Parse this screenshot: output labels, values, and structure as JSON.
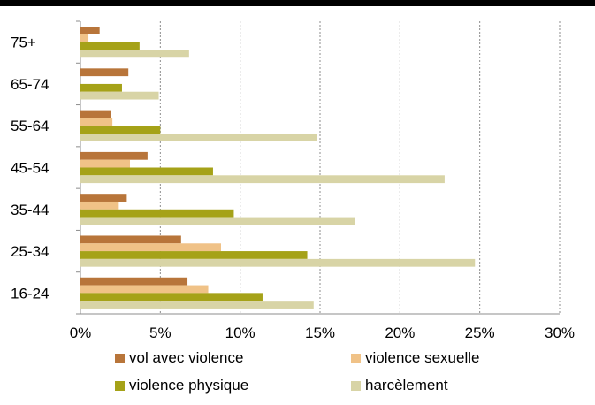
{
  "chart_data": {
    "type": "bar",
    "orientation": "horizontal",
    "categories": [
      "16-24",
      "25-34",
      "35-44",
      "45-54",
      "55-64",
      "65-74",
      "75+"
    ],
    "series": [
      {
        "name": "vol avec violence",
        "color": "#b8753a",
        "values": [
          6.7,
          6.3,
          2.9,
          4.2,
          1.9,
          3.0,
          1.2
        ]
      },
      {
        "name": "violence sexuelle",
        "color": "#f0c287",
        "values": [
          8.0,
          8.8,
          2.4,
          3.1,
          2.0,
          0.0,
          0.5
        ]
      },
      {
        "name": "violence physique",
        "color": "#a5a218",
        "values": [
          11.4,
          14.2,
          9.6,
          8.3,
          5.0,
          2.6,
          3.7
        ]
      },
      {
        "name": "harcèlement",
        "color": "#d8d4a6",
        "values": [
          14.6,
          24.7,
          17.2,
          22.8,
          14.8,
          4.9,
          6.8
        ]
      }
    ],
    "xlim": [
      0,
      30
    ],
    "xticks": [
      "0%",
      "5%",
      "10%",
      "15%",
      "20%",
      "25%",
      "30%"
    ],
    "grid": "vertical dashed",
    "legend_position": "bottom"
  }
}
